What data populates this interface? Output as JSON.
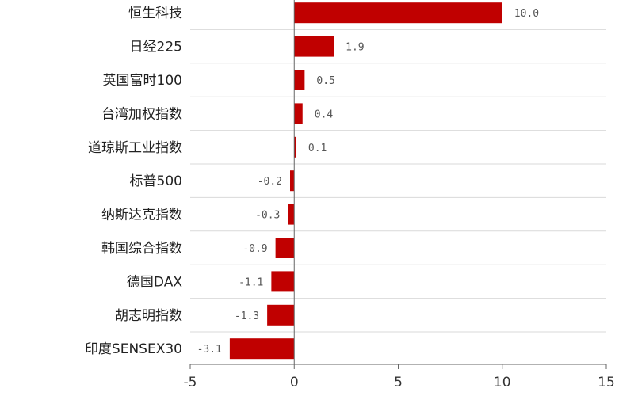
{
  "chart_data": {
    "type": "bar",
    "orientation": "horizontal",
    "categories": [
      "恒生科技",
      "日经225",
      "英国富时100",
      "台湾加权指数",
      "道琼斯工业指数",
      "标普500",
      "纳斯达克指数",
      "韩国综合指数",
      "德国DAX",
      "胡志明指数",
      "印度SENSEX30"
    ],
    "values": [
      10.0,
      1.9,
      0.5,
      0.4,
      0.1,
      -0.2,
      -0.3,
      -0.9,
      -1.1,
      -1.3,
      -3.1
    ],
    "value_labels": [
      "10.0",
      "1.9",
      "0.5",
      "0.4",
      "0.1",
      "-0.2",
      "-0.3",
      "-0.9",
      "-1.1",
      "-1.3",
      "-3.1"
    ],
    "xlim": [
      -5,
      15
    ],
    "xticks": [
      -5,
      0,
      5,
      10,
      15
    ],
    "xtick_labels": [
      "-5",
      "0",
      "5",
      "10",
      "15"
    ],
    "bar_color": "#c00000",
    "grid": true,
    "title": "",
    "xlabel": "",
    "ylabel": ""
  }
}
